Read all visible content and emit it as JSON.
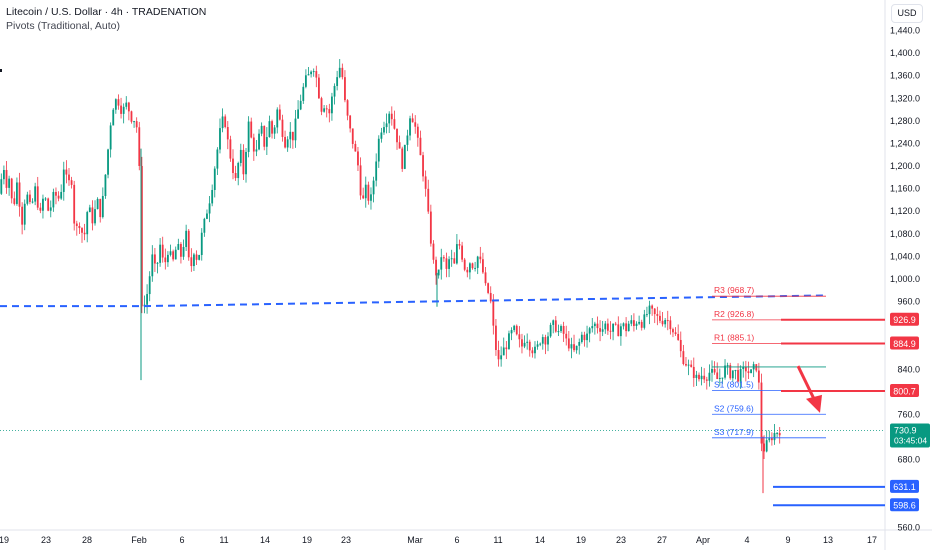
{
  "header": {
    "title": "Litecoin / U.S. Dollar · 4h · TRADENATION",
    "indicator": "Pivots (Traditional, Auto)",
    "currency": "USD"
  },
  "colors": {
    "bull": "#089981",
    "bear": "#f23645",
    "support": "#2962ff",
    "resistance": "#f23645",
    "trendline": "#2962ff",
    "arrow": "#f23645"
  },
  "chart_data": {
    "type": "candlestick",
    "y_axis": {
      "ticks": [
        560,
        600,
        640,
        680,
        720,
        760,
        800,
        840,
        880,
        920,
        960,
        1000,
        1040,
        1080,
        1120,
        1160,
        1200,
        1240,
        1280,
        1320,
        1360,
        1400,
        1440
      ],
      "labels": [
        "560.0",
        "",
        "",
        "680.0",
        "",
        "760.0",
        "",
        "840.0",
        "",
        "",
        "960.0",
        "1,000.0",
        "1,040.0",
        "1,080.0",
        "1,120.0",
        "1,160.0",
        "1,200.0",
        "1,240.0",
        "1,280.0",
        "1,320.0",
        "1,360.0",
        "1,400.0",
        "1,440.0"
      ],
      "range": [
        553,
        1460
      ]
    },
    "x_axis": {
      "labels": [
        "19",
        "23",
        "28",
        "Feb",
        "6",
        "11",
        "14",
        "19",
        "23",
        "Mar",
        "6",
        "11",
        "14",
        "19",
        "23",
        "27",
        "Apr",
        "4",
        "9",
        "13",
        "17"
      ]
    },
    "pivots": [
      {
        "name": "R3",
        "label": "R3 (968.7)",
        "value": 968.7,
        "kind": "resistance"
      },
      {
        "name": "R2",
        "label": "R2 (926.8)",
        "value": 926.8,
        "kind": "resistance"
      },
      {
        "name": "R1",
        "label": "R1 (885.1)",
        "value": 885.1,
        "kind": "resistance"
      },
      {
        "name": "P",
        "label": "",
        "value": 843.4,
        "kind": "pivot"
      },
      {
        "name": "S1",
        "label": "S1 (801.5)",
        "value": 801.5,
        "kind": "support"
      },
      {
        "name": "S2",
        "label": "S2 (759.6)",
        "value": 759.6,
        "kind": "support"
      },
      {
        "name": "S3",
        "label": "S3 (717.9)",
        "value": 717.9,
        "kind": "support"
      }
    ],
    "price_tags": [
      {
        "value": 926.9,
        "text": "926.9",
        "color": "#f23645"
      },
      {
        "value": 884.9,
        "text": "884.9",
        "color": "#f23645"
      },
      {
        "value": 800.7,
        "text": "800.7",
        "color": "#f23645"
      },
      {
        "value": 631.1,
        "text": "631.1",
        "color": "#2962ff"
      },
      {
        "value": 598.6,
        "text": "598.6",
        "color": "#2962ff"
      }
    ],
    "current_price": {
      "value": 730.9,
      "text": "730.9",
      "countdown": "03:45:04"
    },
    "horizontal_levels": [
      {
        "value": 926.9,
        "color": "#f23645"
      },
      {
        "value": 884.9,
        "color": "#f23645"
      },
      {
        "value": 800.7,
        "color": "#f23645"
      },
      {
        "value": 631.1,
        "color": "#2962ff"
      },
      {
        "value": 598.6,
        "color": "#2962ff"
      }
    ],
    "trendline": [
      {
        "x": "Jan 16",
        "y": 951
      },
      {
        "x": "Feb 6",
        "y": 951
      },
      {
        "x": "Mar 10",
        "y": 961
      },
      {
        "x": "Apr 13",
        "y": 971
      }
    ],
    "arrow": {
      "from": 845,
      "to": 762
    },
    "price_path": [
      {
        "t": 0,
        "p": 1150
      },
      {
        "t": 3,
        "p": 1210
      },
      {
        "t": 6,
        "p": 1165
      },
      {
        "t": 9,
        "p": 1180
      },
      {
        "t": 13,
        "p": 1120
      },
      {
        "t": 17,
        "p": 1170
      },
      {
        "t": 22,
        "p": 1100
      },
      {
        "t": 26,
        "p": 1155
      },
      {
        "t": 31,
        "p": 1120
      },
      {
        "t": 35,
        "p": 1160
      },
      {
        "t": 40,
        "p": 1110
      },
      {
        "t": 44,
        "p": 1150
      },
      {
        "t": 49,
        "p": 1115
      },
      {
        "t": 54,
        "p": 1150
      },
      {
        "t": 60,
        "p": 1140
      },
      {
        "t": 64,
        "p": 1200
      },
      {
        "t": 68,
        "p": 1160
      },
      {
        "t": 71,
        "p": 1190
      },
      {
        "t": 75,
        "p": 1080
      },
      {
        "t": 79,
        "p": 1100
      },
      {
        "t": 84,
        "p": 1070
      },
      {
        "t": 88,
        "p": 1130
      },
      {
        "t": 93,
        "p": 1100
      },
      {
        "t": 97,
        "p": 1140
      },
      {
        "t": 101,
        "p": 1110
      },
      {
        "t": 107,
        "p": 1210
      },
      {
        "t": 112,
        "p": 1300
      },
      {
        "t": 117,
        "p": 1320
      },
      {
        "t": 122,
        "p": 1295
      },
      {
        "t": 127,
        "p": 1310
      },
      {
        "t": 131,
        "p": 1285
      },
      {
        "t": 136,
        "p": 1280
      },
      {
        "t": 139,
        "p": 1230
      },
      {
        "t": 141,
        "p": 960
      },
      {
        "t": 144,
        "p": 950
      },
      {
        "t": 148,
        "p": 980
      },
      {
        "t": 152,
        "p": 1040
      },
      {
        "t": 156,
        "p": 1010
      },
      {
        "t": 160,
        "p": 1060
      },
      {
        "t": 164,
        "p": 1020
      },
      {
        "t": 168,
        "p": 1050
      },
      {
        "t": 173,
        "p": 1030
      },
      {
        "t": 177,
        "p": 1060
      },
      {
        "t": 181,
        "p": 1040
      },
      {
        "t": 186,
        "p": 1080
      },
      {
        "t": 190,
        "p": 1010
      },
      {
        "t": 194,
        "p": 1050
      },
      {
        "t": 198,
        "p": 1030
      },
      {
        "t": 202,
        "p": 1080
      },
      {
        "t": 207,
        "p": 1120
      },
      {
        "t": 211,
        "p": 1150
      },
      {
        "t": 215,
        "p": 1200
      },
      {
        "t": 220,
        "p": 1260
      },
      {
        "t": 224,
        "p": 1290
      },
      {
        "t": 228,
        "p": 1240
      },
      {
        "t": 232,
        "p": 1200
      },
      {
        "t": 236,
        "p": 1170
      },
      {
        "t": 240,
        "p": 1230
      },
      {
        "t": 244,
        "p": 1180
      },
      {
        "t": 248,
        "p": 1280
      },
      {
        "t": 252,
        "p": 1240
      },
      {
        "t": 256,
        "p": 1220
      },
      {
        "t": 261,
        "p": 1270
      },
      {
        "t": 265,
        "p": 1230
      },
      {
        "t": 269,
        "p": 1280
      },
      {
        "t": 273,
        "p": 1250
      },
      {
        "t": 277,
        "p": 1300
      },
      {
        "t": 281,
        "p": 1270
      },
      {
        "t": 285,
        "p": 1240
      },
      {
        "t": 289,
        "p": 1260
      },
      {
        "t": 293,
        "p": 1250
      },
      {
        "t": 297,
        "p": 1290
      },
      {
        "t": 301,
        "p": 1320
      },
      {
        "t": 305,
        "p": 1350
      },
      {
        "t": 309,
        "p": 1360
      },
      {
        "t": 313,
        "p": 1380
      },
      {
        "t": 317,
        "p": 1350
      },
      {
        "t": 321,
        "p": 1300
      },
      {
        "t": 325,
        "p": 1310
      },
      {
        "t": 329,
        "p": 1290
      },
      {
        "t": 333,
        "p": 1330
      },
      {
        "t": 337,
        "p": 1360
      },
      {
        "t": 341,
        "p": 1380
      },
      {
        "t": 345,
        "p": 1310
      },
      {
        "t": 349,
        "p": 1270
      },
      {
        "t": 353,
        "p": 1240
      },
      {
        "t": 358,
        "p": 1200
      },
      {
        "t": 362,
        "p": 1130
      },
      {
        "t": 366,
        "p": 1160
      },
      {
        "t": 370,
        "p": 1130
      },
      {
        "t": 374,
        "p": 1180
      },
      {
        "t": 378,
        "p": 1240
      },
      {
        "t": 382,
        "p": 1270
      },
      {
        "t": 386,
        "p": 1280
      },
      {
        "t": 390,
        "p": 1300
      },
      {
        "t": 394,
        "p": 1270
      },
      {
        "t": 398,
        "p": 1240
      },
      {
        "t": 402,
        "p": 1200
      },
      {
        "t": 406,
        "p": 1240
      },
      {
        "t": 410,
        "p": 1290
      },
      {
        "t": 414,
        "p": 1280
      },
      {
        "t": 418,
        "p": 1240
      },
      {
        "t": 422,
        "p": 1200
      },
      {
        "t": 426,
        "p": 1150
      },
      {
        "t": 430,
        "p": 1080
      },
      {
        "t": 434,
        "p": 1020
      },
      {
        "t": 438,
        "p": 1000
      },
      {
        "t": 442,
        "p": 1050
      },
      {
        "t": 446,
        "p": 1010
      },
      {
        "t": 450,
        "p": 1040
      },
      {
        "t": 454,
        "p": 1020
      },
      {
        "t": 458,
        "p": 1070
      },
      {
        "t": 462,
        "p": 1040
      },
      {
        "t": 466,
        "p": 1010
      },
      {
        "t": 470,
        "p": 1030
      },
      {
        "t": 474,
        "p": 1020
      },
      {
        "t": 478,
        "p": 1040
      },
      {
        "t": 482,
        "p": 1020
      },
      {
        "t": 486,
        "p": 980
      },
      {
        "t": 490,
        "p": 970
      },
      {
        "t": 494,
        "p": 900
      },
      {
        "t": 498,
        "p": 850
      },
      {
        "t": 502,
        "p": 870
      },
      {
        "t": 506,
        "p": 880
      },
      {
        "t": 510,
        "p": 900
      },
      {
        "t": 514,
        "p": 910
      },
      {
        "t": 518,
        "p": 890
      },
      {
        "t": 522,
        "p": 880
      },
      {
        "t": 526,
        "p": 900
      },
      {
        "t": 530,
        "p": 880
      },
      {
        "t": 534,
        "p": 870
      },
      {
        "t": 538,
        "p": 880
      },
      {
        "t": 542,
        "p": 900
      },
      {
        "t": 546,
        "p": 890
      },
      {
        "t": 550,
        "p": 910
      },
      {
        "t": 554,
        "p": 920
      },
      {
        "t": 558,
        "p": 905
      },
      {
        "t": 562,
        "p": 910
      },
      {
        "t": 566,
        "p": 890
      },
      {
        "t": 570,
        "p": 880
      },
      {
        "t": 574,
        "p": 870
      },
      {
        "t": 578,
        "p": 880
      },
      {
        "t": 582,
        "p": 900
      },
      {
        "t": 586,
        "p": 895
      },
      {
        "t": 590,
        "p": 910
      },
      {
        "t": 594,
        "p": 920
      },
      {
        "t": 598,
        "p": 915
      },
      {
        "t": 602,
        "p": 910
      },
      {
        "t": 606,
        "p": 920
      },
      {
        "t": 610,
        "p": 905
      },
      {
        "t": 614,
        "p": 915
      },
      {
        "t": 618,
        "p": 905
      },
      {
        "t": 622,
        "p": 920
      },
      {
        "t": 626,
        "p": 910
      },
      {
        "t": 630,
        "p": 925
      },
      {
        "t": 634,
        "p": 915
      },
      {
        "t": 638,
        "p": 930
      },
      {
        "t": 642,
        "p": 920
      },
      {
        "t": 646,
        "p": 935
      },
      {
        "t": 650,
        "p": 945
      },
      {
        "t": 654,
        "p": 935
      },
      {
        "t": 658,
        "p": 930
      },
      {
        "t": 662,
        "p": 925
      },
      {
        "t": 666,
        "p": 930
      },
      {
        "t": 670,
        "p": 920
      },
      {
        "t": 674,
        "p": 905
      },
      {
        "t": 678,
        "p": 890
      },
      {
        "t": 682,
        "p": 860
      },
      {
        "t": 686,
        "p": 850
      },
      {
        "t": 690,
        "p": 840
      },
      {
        "t": 694,
        "p": 830
      },
      {
        "t": 698,
        "p": 820
      },
      {
        "t": 702,
        "p": 830
      },
      {
        "t": 706,
        "p": 825
      },
      {
        "t": 710,
        "p": 835
      },
      {
        "t": 714,
        "p": 830
      },
      {
        "t": 718,
        "p": 820
      },
      {
        "t": 722,
        "p": 830
      },
      {
        "t": 726,
        "p": 845
      },
      {
        "t": 730,
        "p": 830
      },
      {
        "t": 734,
        "p": 840
      },
      {
        "t": 738,
        "p": 825
      },
      {
        "t": 742,
        "p": 835
      },
      {
        "t": 746,
        "p": 840
      },
      {
        "t": 750,
        "p": 830
      },
      {
        "t": 754,
        "p": 842
      },
      {
        "t": 758,
        "p": 845
      },
      {
        "t": 762,
        "p": 690
      },
      {
        "t": 766,
        "p": 705
      },
      {
        "t": 770,
        "p": 715
      },
      {
        "t": 774,
        "p": 725
      },
      {
        "t": 778,
        "p": 730
      },
      {
        "t": 781,
        "p": 731
      }
    ]
  }
}
